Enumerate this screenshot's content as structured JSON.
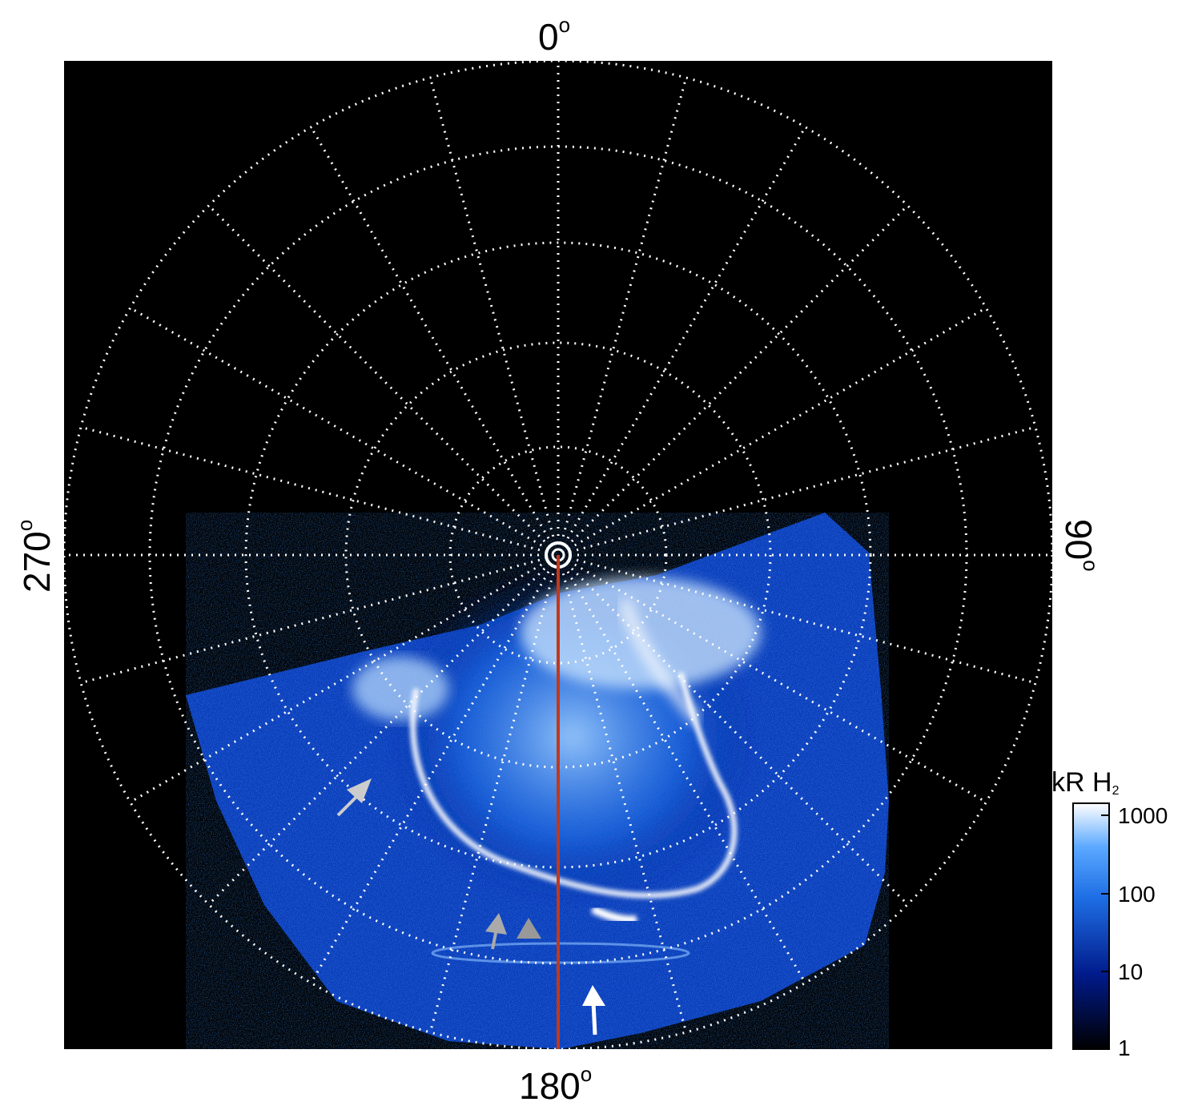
{
  "labels": {
    "top": "0",
    "bottom": "180",
    "left": "270",
    "right": "90",
    "degree_symbol": "o"
  },
  "colorbar": {
    "title_main": "kR H",
    "title_sub": "2",
    "ticks": [
      "1000",
      "100",
      "10",
      "1"
    ],
    "colors": [
      "#000000",
      "#001a8a",
      "#1f6fe6",
      "#5aa8ff",
      "#ffffff"
    ]
  },
  "image": {
    "background": "#000000",
    "grid_color": "#ffffff",
    "meridian_color": "#c0391b",
    "arrow_colors": [
      "#cccccc",
      "#999999",
      "#ffffff"
    ]
  }
}
